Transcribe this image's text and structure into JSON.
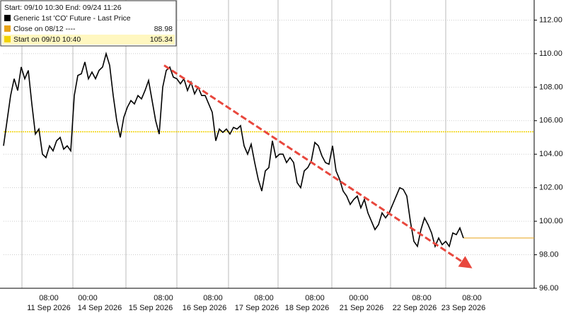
{
  "chart_data": {
    "type": "line",
    "legend": {
      "corner": "upper left",
      "header": "Start: 09/10 10:30 End: 09/24 11:26"
    },
    "series": [
      {
        "name": "Generic 1st 'CO' Future - Last Price",
        "color": "#000000",
        "values": [
          104.5,
          106,
          107.5,
          108.5,
          107.8,
          109.2,
          108.5,
          109.0,
          107,
          105.2,
          105.5,
          104.0,
          103.8,
          104.5,
          104.2,
          104.8,
          105.0,
          104.3,
          104.5,
          104.2,
          107.5,
          108.7,
          108.8,
          109.5,
          108.5,
          108.9,
          108.5,
          109.0,
          109.2,
          110.0,
          109.3,
          107.5,
          106.0,
          105.0,
          106.2,
          106.8,
          107.2,
          107.0,
          107.5,
          107.3,
          107.8,
          108.4,
          107.2,
          106.0,
          105.2,
          108.0,
          109.0,
          109.2,
          108.6,
          108.5,
          108.2,
          108.5,
          107.8,
          108.3,
          107.6,
          108.0,
          107.5,
          107.5,
          107.0,
          106.5,
          104.8,
          105.5,
          105.3,
          105.5,
          105.2,
          105.6,
          105.5,
          105.7,
          104.5,
          104.0,
          104.6,
          103.5,
          102.5,
          101.8,
          103.0,
          103.2,
          104.8,
          103.8,
          104.0,
          104.0,
          103.5,
          103.8,
          103.5,
          102.3,
          102.0,
          103.0,
          103.2,
          103.6,
          104.7,
          104.5,
          103.9,
          103.5,
          103.4,
          104.5,
          103.0,
          102.5,
          101.8,
          101.5,
          101.0,
          101.3,
          101.5,
          100.8,
          101.3,
          100.5,
          100.0,
          99.5,
          99.8,
          100.5,
          100.2,
          100.5,
          101.0,
          101.5,
          102.0,
          101.9,
          101.5,
          100.0,
          98.8,
          98.5,
          99.5,
          100.2,
          99.8,
          99.3,
          98.5,
          99.0,
          98.6,
          98.8,
          98.5,
          99.3,
          99.2,
          99.6,
          99.0
        ]
      },
      {
        "name": "Close on 08/12 ----",
        "color": "#e8a317",
        "value": 88.98,
        "value_label": "88.98"
      },
      {
        "name": "Start on 09/10 10:40",
        "color": "#f2d200",
        "value": 105.34,
        "value_label": "105.34"
      }
    ],
    "trendline": {
      "color": "#e8473d",
      "start": 109.3,
      "end": 97.4
    },
    "time_labels": [
      "08:00",
      "00:00",
      "08:00",
      "08:00",
      "08:00",
      "08:00",
      "00:00",
      "08:00",
      "08:00"
    ],
    "date_labels": [
      "11 Sep 2026",
      "14 Sep 2026",
      "15 Sep 2026",
      "16 Sep 2026",
      "17 Sep 2026",
      "18 Sep 2026",
      "21 Sep 2026",
      "22 Sep 2026",
      "23 Sep 2026"
    ],
    "ylim": [
      96,
      113.2
    ],
    "yticks": [
      {
        "value": 96,
        "label": "96.00"
      },
      {
        "value": 98,
        "label": "98.00"
      },
      {
        "value": 100,
        "label": "100.00"
      },
      {
        "value": 102,
        "label": "102.00"
      },
      {
        "value": 104,
        "label": "104.00"
      },
      {
        "value": 106,
        "label": "106.00"
      },
      {
        "value": 108,
        "label": "108.00"
      },
      {
        "value": 110,
        "label": "110.00"
      },
      {
        "value": 112,
        "label": "112.00"
      }
    ],
    "grid": true
  }
}
